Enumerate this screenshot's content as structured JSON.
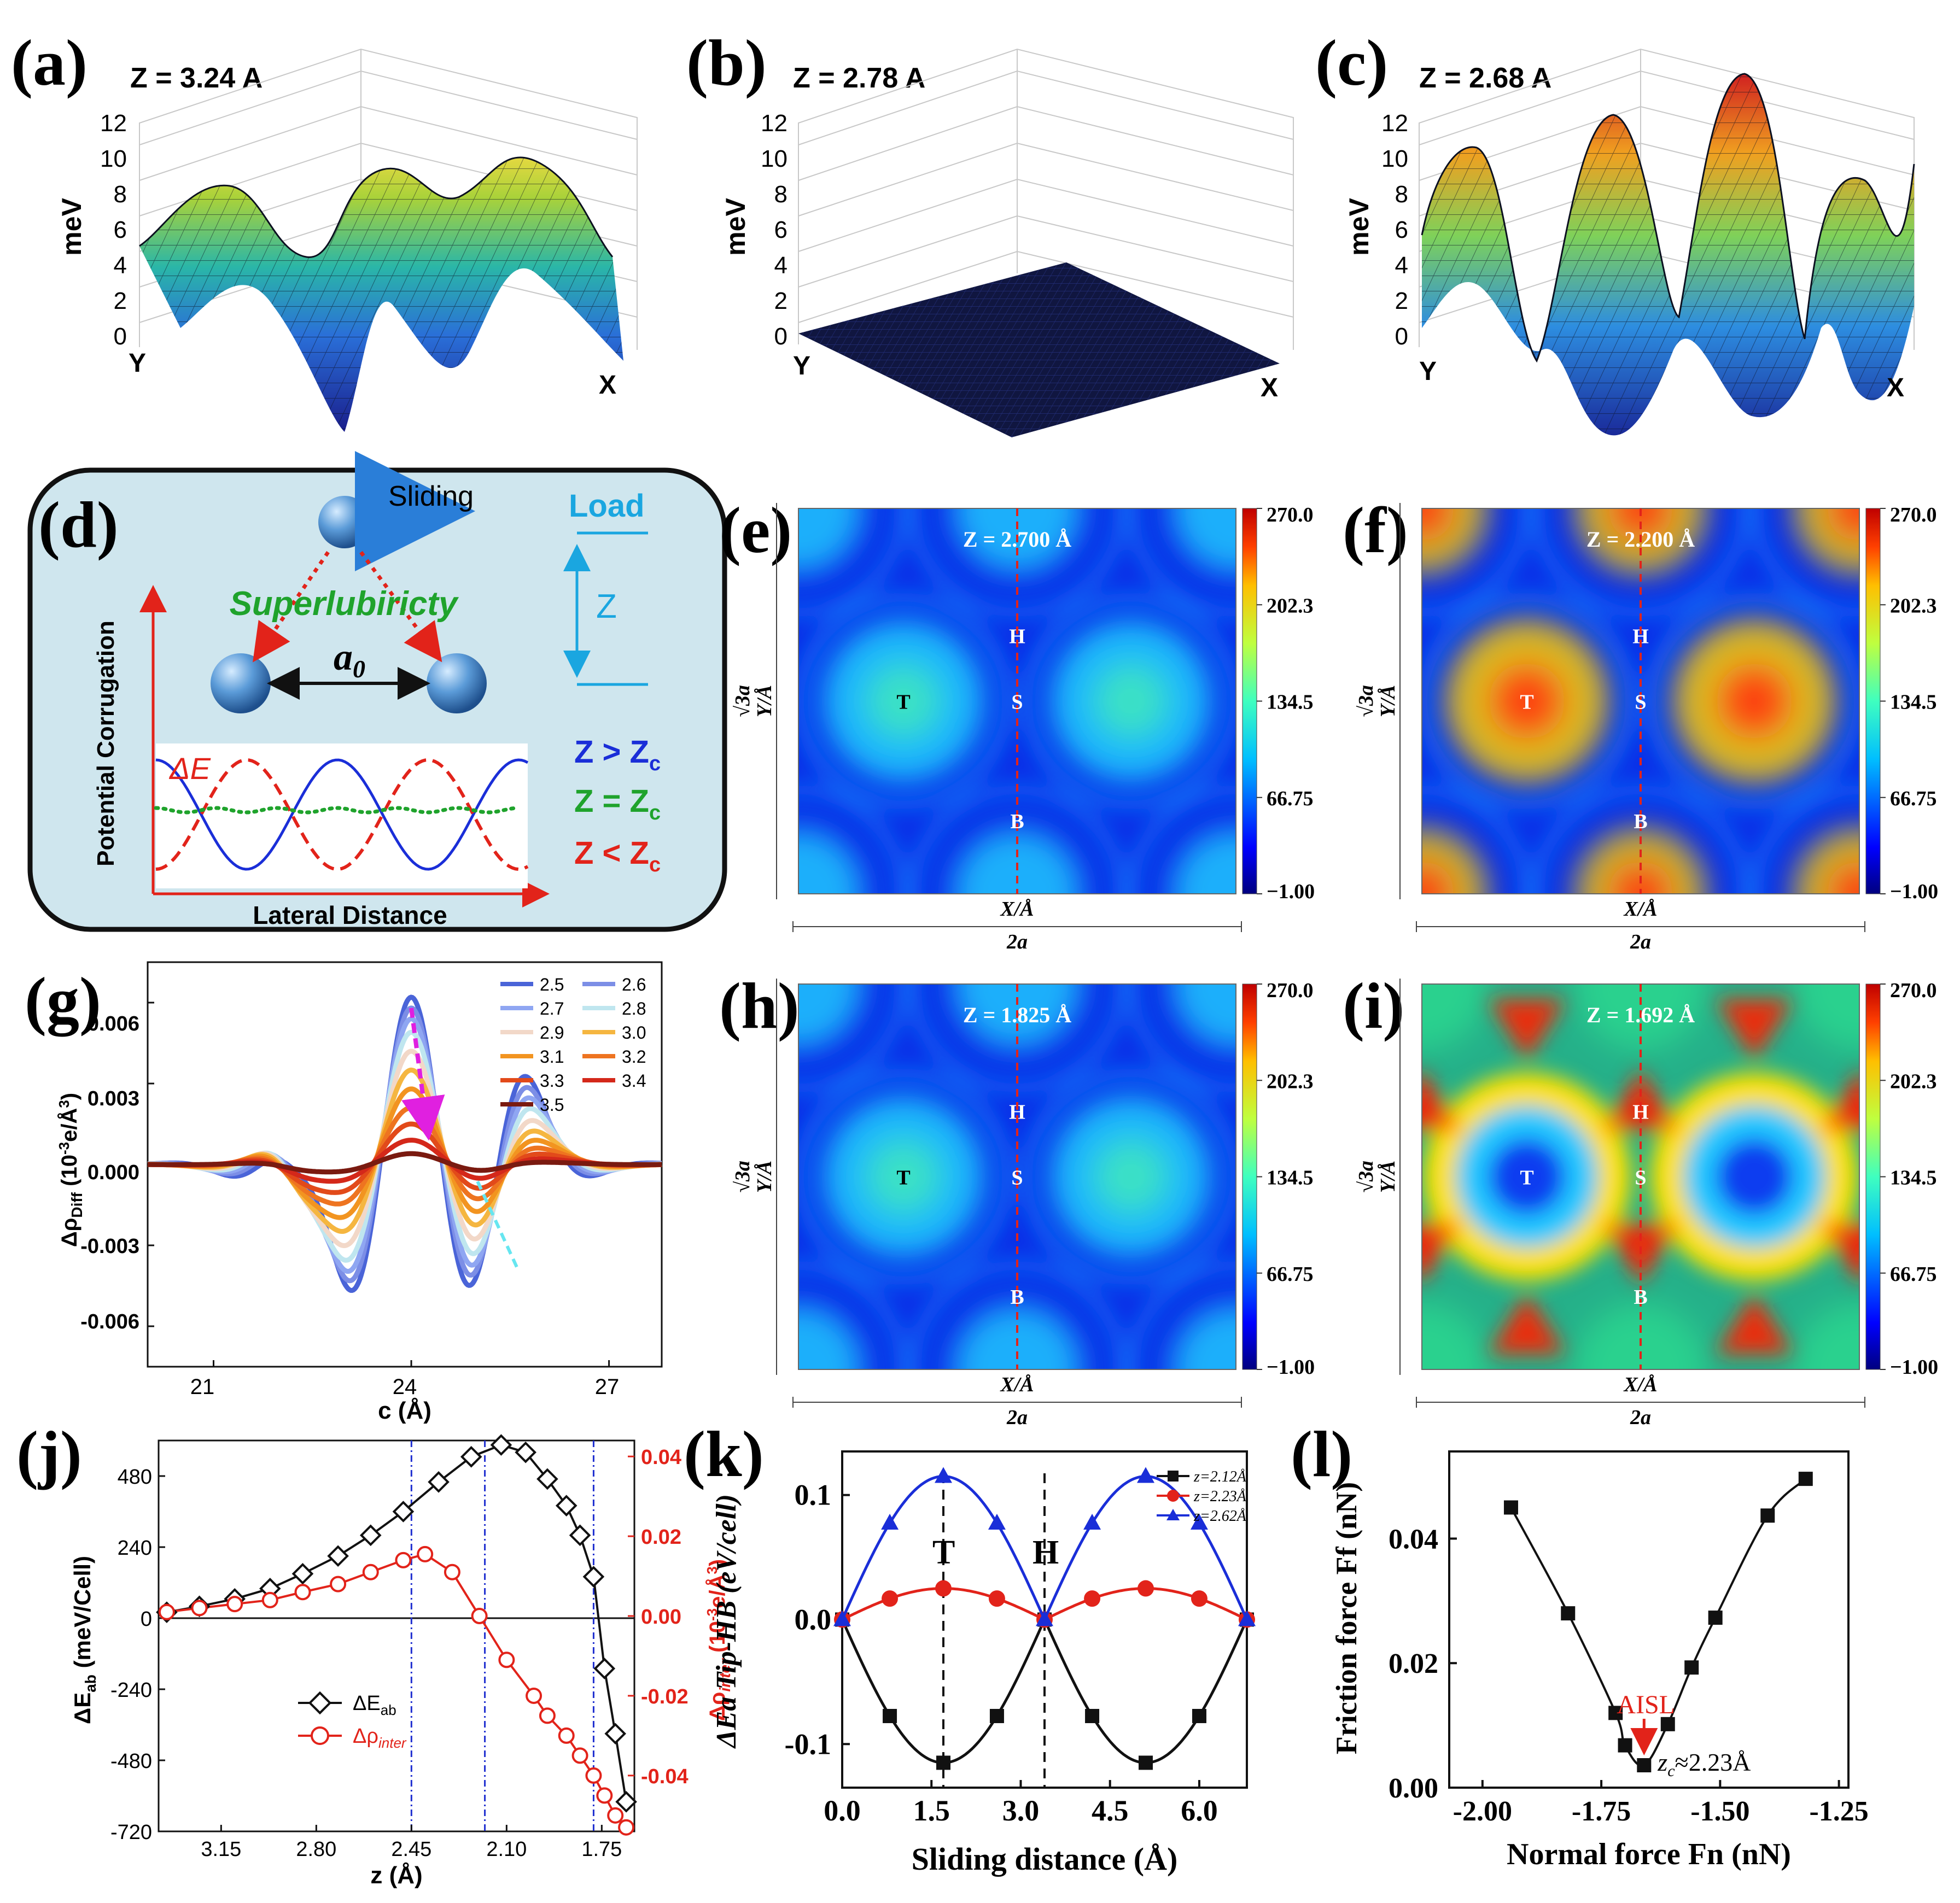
{
  "colors": {
    "blue": "#1a2ed8",
    "red": "#e2231a",
    "green": "#1fa32c",
    "black": "#111111",
    "panel_d_bg": "#cfe6ee",
    "dark_navy": "#101640",
    "jet": [
      "#00007f",
      "#0000ff",
      "#007fff",
      "#00ffff",
      "#7fff7f",
      "#ffff00",
      "#ff7f00",
      "#ff0000",
      "#7f0000"
    ]
  },
  "panels": {
    "a": {
      "label": "(a)",
      "title": "Z = 3.24 A",
      "zlabel": "meV",
      "zticks": [
        "0",
        "2",
        "4",
        "6",
        "8",
        "10",
        "12"
      ],
      "xaxis": "X",
      "yaxis": "Y",
      "corrugation_meV": 10.5
    },
    "b": {
      "label": "(b)",
      "title": "Z = 2.78 A",
      "zlabel": "meV",
      "zticks": [
        "0",
        "2",
        "4",
        "6",
        "8",
        "10",
        "12"
      ],
      "xaxis": "X",
      "yaxis": "Y",
      "corrugation_meV": 0.3
    },
    "c": {
      "label": "(c)",
      "title": "Z = 2.68 A",
      "zlabel": "meV",
      "zticks": [
        "0",
        "2",
        "4",
        "6",
        "8",
        "10",
        "12"
      ],
      "xaxis": "X",
      "yaxis": "Y",
      "corrugation_meV": 13
    },
    "d": {
      "label": "(d)",
      "sliding": "Sliding",
      "superlubricity": "Superlubiricty",
      "a0_main": "a",
      "a0_sub": "0",
      "load": "Load",
      "z": "Z",
      "delta_e": "ΔE",
      "ylabel": "Potential Corrugation",
      "xlabel": "Lateral Distance",
      "legend": [
        {
          "main": "Z > Z",
          "sub": "c",
          "color": "#1a2ed8"
        },
        {
          "main": "Z = Z",
          "sub": "c",
          "color": "#1fa32c"
        },
        {
          "main": "Z < Z",
          "sub": "c",
          "color": "#e2231a"
        }
      ]
    },
    "maps": [
      {
        "key": "e",
        "label": "(e)",
        "title": "Z = 2.700 Å",
        "intensity": 0.3,
        "tri": 0.0
      },
      {
        "key": "f",
        "label": "(f)",
        "title": "Z = 2.200 Å",
        "intensity": 0.75,
        "tri": 0.0
      },
      {
        "key": "h",
        "label": "(h)",
        "title": "Z = 1.825 Å",
        "intensity": 0.2,
        "tri": 0.0
      },
      {
        "key": "i",
        "label": "(i)",
        "title": "Z = 1.692 Å",
        "intensity": 0.55,
        "tri": 1.0
      }
    ],
    "map_common": {
      "colorbar_ticks": [
        "270.0",
        "202.3",
        "134.5",
        "66.75",
        "−1.00"
      ],
      "x_label": "X/Å",
      "x_span": "2a",
      "y_label": "Y/Å",
      "y_span": "√3a",
      "sites": [
        "T",
        "H",
        "S",
        "B"
      ]
    },
    "g": {
      "label": "(g)",
      "xlabel": "c (Å)",
      "ylabel_main": "Δρ",
      "ylabel_sub": "Diff",
      "ylabel_unit": " (10",
      "ylabel_exp": "-3",
      "ylabel_tail": "e/Å",
      "ylabel_exp2": "3",
      "ylabel_close": ")",
      "xticks": [
        "21",
        "24",
        "27"
      ],
      "yticks": [
        "0.006",
        "0.003",
        "0.000",
        "-0.003",
        "-0.006"
      ],
      "legend": [
        "2.5",
        "2.6",
        "2.7",
        "2.8",
        "2.9",
        "3.0",
        "3.1",
        "3.2",
        "3.3",
        "3.4",
        "3.5"
      ]
    },
    "j": {
      "label": "(j)",
      "xlabel": "z (Å)",
      "ylabel_left_main": "ΔE",
      "ylabel_left_sub": "ab",
      "ylabel_left_unit": " (meV/Cell)",
      "ylabel_right_main": "Δρ",
      "ylabel_right_sub": "inter",
      "ylabel_right_unit": " (10",
      "ylabel_right_exp": "-3",
      "ylabel_right_tail": "e/Å",
      "ylabel_right_exp2": "3",
      "ylabel_right_close": ")",
      "xticks": [
        "3.15",
        "2.80",
        "2.45",
        "2.10",
        "1.75"
      ],
      "yticks_left": [
        "480",
        "240",
        "0",
        "-240",
        "-480",
        "-720"
      ],
      "yticks_right": [
        "0.04",
        "0.02",
        "0.00",
        "-0.02",
        "-0.04"
      ],
      "legend_e_main": "ΔE",
      "legend_e_sub": "ab",
      "legend_r_main": "Δρ",
      "legend_r_sub": "inter"
    },
    "k": {
      "label": "(k)",
      "xlabel": "Sliding distance (Å)",
      "ylabel": "ΔEa Tip-HB (eV/cell)",
      "xticks": [
        "0.0",
        "1.5",
        "3.0",
        "4.5",
        "6.0"
      ],
      "yticks": [
        "0.1",
        "0.0",
        "-0.1"
      ],
      "site_t": "T",
      "site_h": "H",
      "legend": [
        "z=2.12Å",
        "z=2.23Å",
        "z=2.62Å"
      ]
    },
    "l": {
      "label": "(l)",
      "xlabel": "Normal force Fn (nN)",
      "ylabel": "Friction force Ff (nN)",
      "xticks": [
        "-2.00",
        "-1.75",
        "-1.50",
        "-1.25"
      ],
      "yticks": [
        "0.04",
        "0.02",
        "0.00"
      ],
      "annotation": "AISL",
      "zc": "z",
      "zc_sub": "c",
      "zc_val": "≈2.23Å"
    }
  },
  "chart_data": [
    {
      "type": "line",
      "panel": "g",
      "x_range": [
        20,
        27.8
      ],
      "ylim": [
        -0.0075,
        0.0075
      ],
      "series_names": [
        "2.5",
        "2.6",
        "2.7",
        "2.8",
        "2.9",
        "3.0",
        "3.1",
        "3.2",
        "3.3",
        "3.4",
        "3.5"
      ],
      "peak_amplitude": [
        0.0062,
        0.0058,
        0.0054,
        0.0049,
        0.0042,
        0.0035,
        0.0028,
        0.0021,
        0.0015,
        0.0009,
        0.0004
      ],
      "peak_x": 24.0
    },
    {
      "type": "line",
      "panel": "j",
      "series": [
        {
          "name": "ΔE_ab",
          "axis": "left",
          "x": [
            3.35,
            3.23,
            3.1,
            2.97,
            2.85,
            2.72,
            2.6,
            2.48,
            2.35,
            2.23,
            2.12,
            2.03,
            1.95,
            1.88,
            1.83,
            1.78,
            1.74,
            1.7,
            1.66
          ],
          "y": [
            20,
            40,
            65,
            100,
            150,
            210,
            280,
            360,
            460,
            545,
            585,
            560,
            470,
            380,
            280,
            140,
            -170,
            -390,
            -620
          ]
        },
        {
          "name": "Δρ_inter",
          "axis": "right",
          "x": [
            3.35,
            3.23,
            3.1,
            2.97,
            2.85,
            2.72,
            2.6,
            2.48,
            2.4,
            2.3,
            2.2,
            2.1,
            2.0,
            1.95,
            1.88,
            1.83,
            1.78,
            1.74,
            1.7,
            1.66
          ],
          "y": [
            0.001,
            0.002,
            0.003,
            0.004,
            0.006,
            0.008,
            0.011,
            0.014,
            0.0155,
            0.011,
            0.0,
            -0.011,
            -0.02,
            -0.025,
            -0.03,
            -0.035,
            -0.04,
            -0.045,
            -0.05,
            -0.053
          ]
        }
      ],
      "xlim": [
        3.38,
        1.63
      ],
      "ylim_left": [
        -720,
        600
      ],
      "ylim_right": [
        -0.054,
        0.044
      ],
      "vlines": [
        2.45,
        2.18,
        1.78
      ]
    },
    {
      "type": "line",
      "panel": "k",
      "series": [
        {
          "name": "z=2.12Å",
          "amp": -0.115
        },
        {
          "name": "z=2.23Å",
          "amp": 0.025
        },
        {
          "name": "z=2.62Å",
          "amp": 0.115
        }
      ],
      "period": 3.4,
      "marker_x": [
        0.0,
        0.8,
        1.7,
        2.6,
        3.4,
        4.2,
        5.1,
        6.0,
        6.8
      ],
      "xlim": [
        0,
        6.8
      ],
      "ylim": [
        -0.135,
        0.135
      ],
      "vlines": [
        1.7,
        3.4
      ]
    },
    {
      "type": "scatter",
      "panel": "l",
      "x": [
        -1.94,
        -1.82,
        -1.72,
        -1.7,
        -1.66,
        -1.61,
        -1.56,
        -1.51,
        -1.4,
        -1.32
      ],
      "y": [
        0.045,
        0.028,
        0.012,
        0.0068,
        0.0036,
        0.0102,
        0.0193,
        0.0273,
        0.0437,
        0.0496
      ],
      "xlim": [
        -2.07,
        -1.23
      ],
      "ylim": [
        0,
        0.054
      ]
    }
  ]
}
